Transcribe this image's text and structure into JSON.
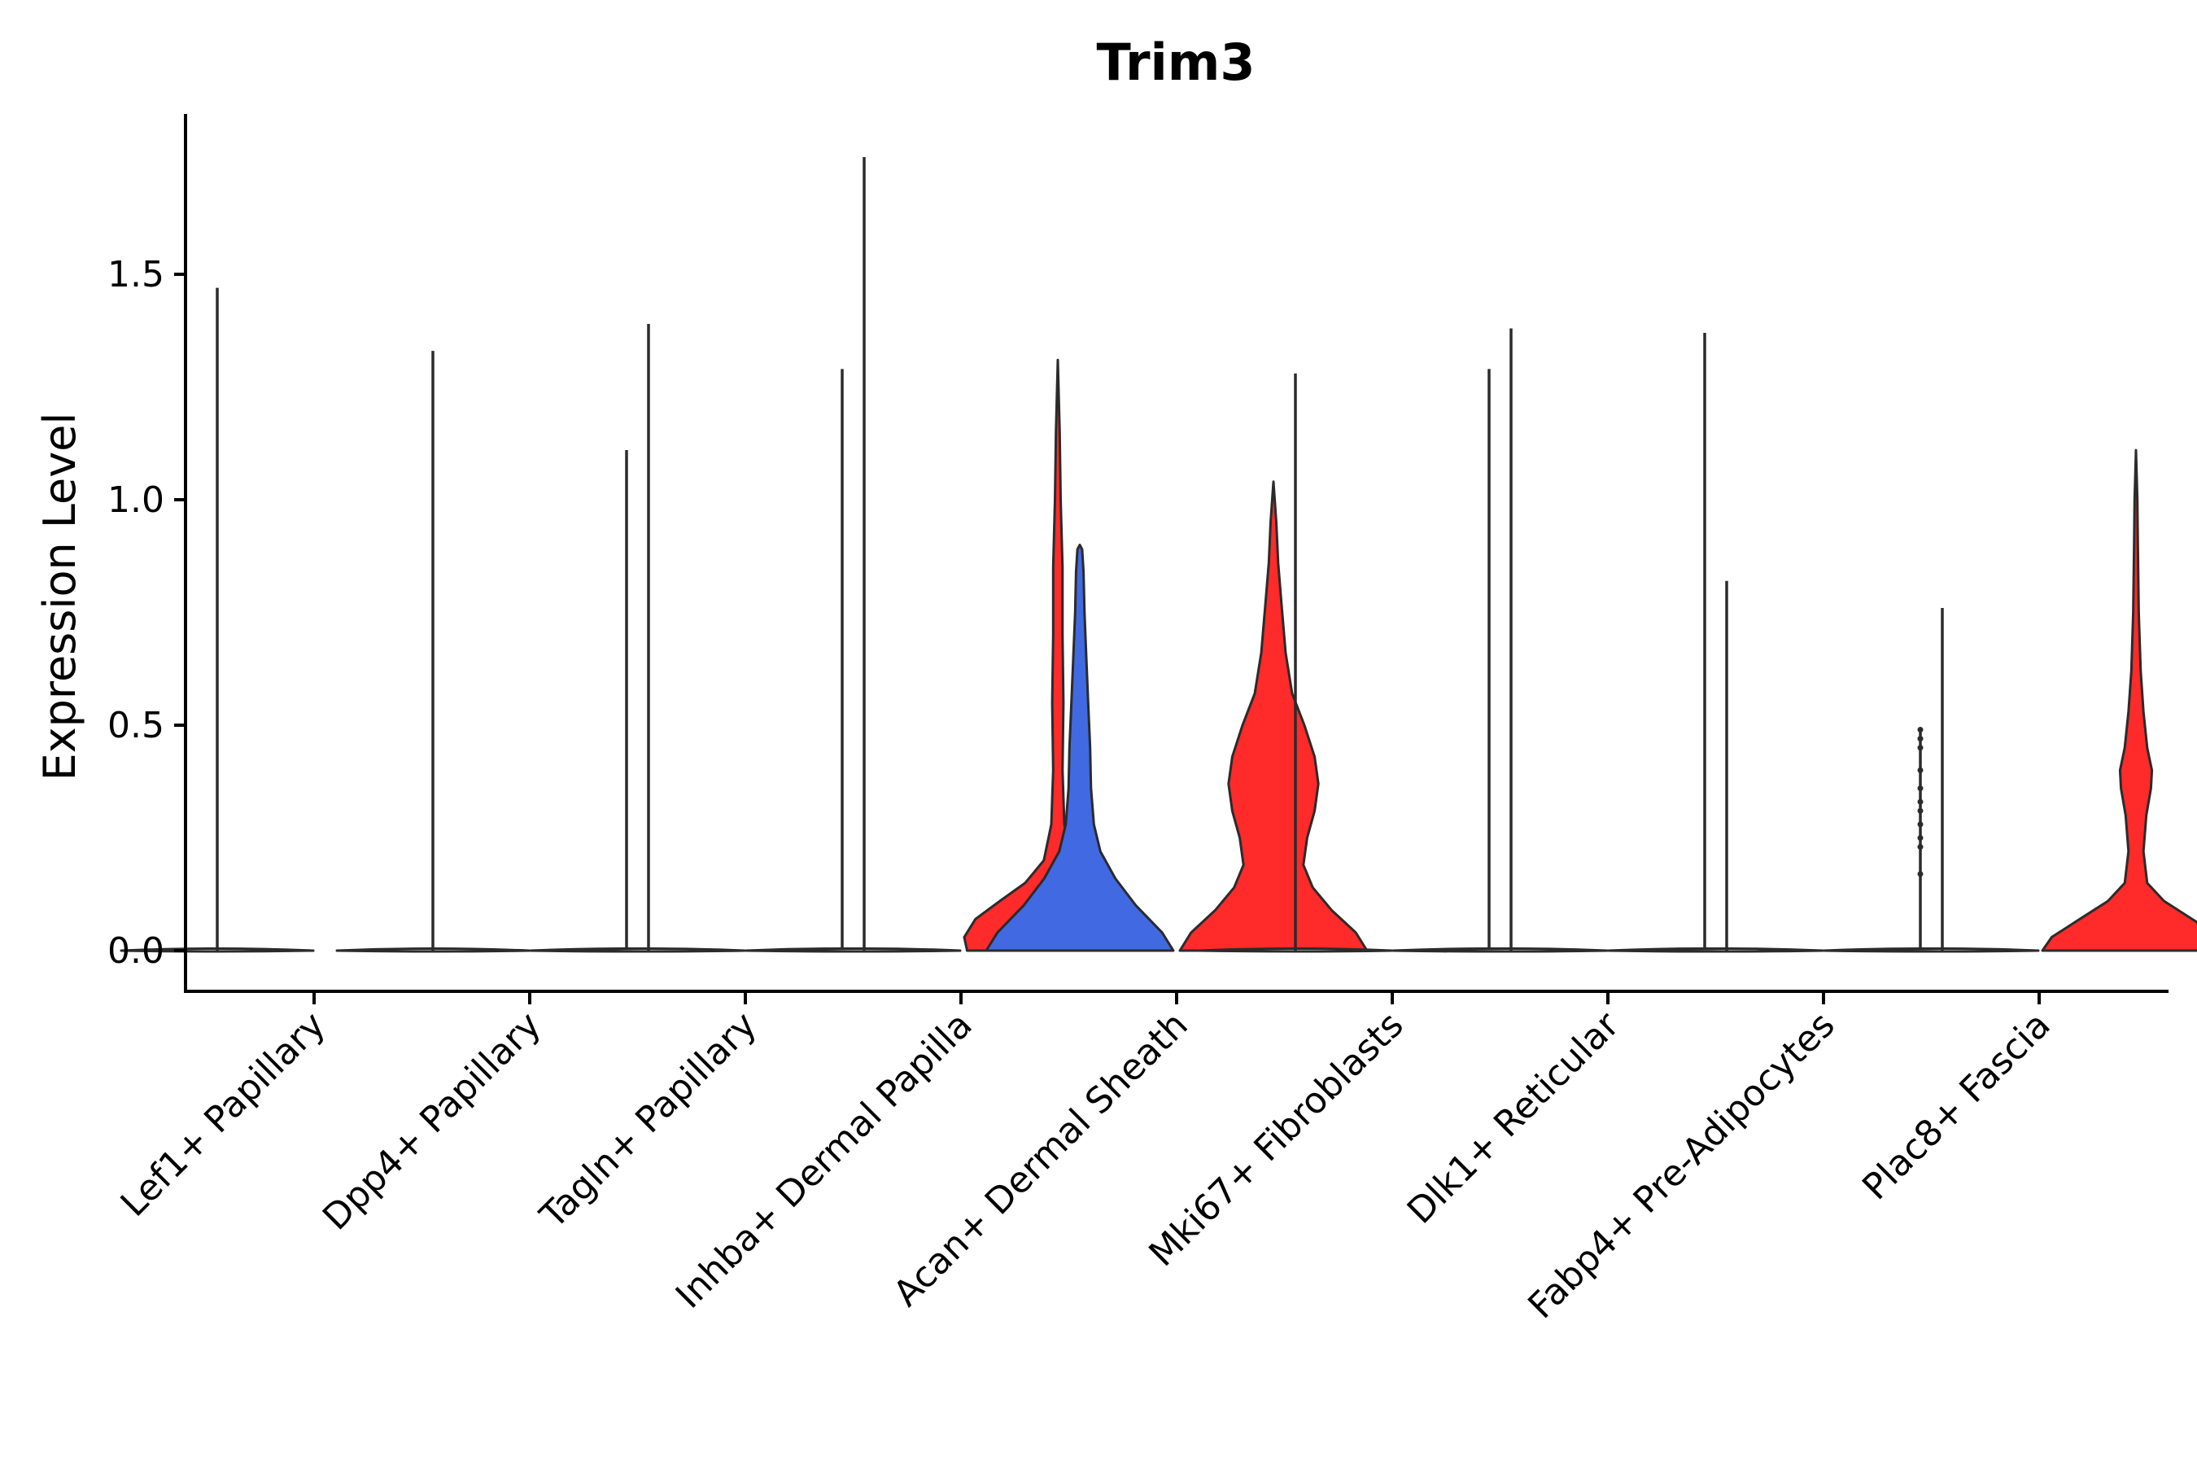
{
  "chart_data": {
    "type": "violin",
    "title": "Trim3",
    "xlabel": "",
    "ylabel": "Expression Level",
    "ylim": [
      -0.09,
      1.85
    ],
    "yticks": [
      0.0,
      0.5,
      1.0,
      1.5
    ],
    "ytick_labels": [
      "0.0",
      "0.5",
      "1.0",
      "1.5"
    ],
    "categories": [
      "Lef1+ Papillary",
      "Dpp4+ Papillary",
      "Tagln+ Papillary",
      "Inhba+ Dermal Papilla",
      "Acan+ Dermal Sheath",
      "Mki67+ Fibroblasts",
      "Dlk1+ Reticular",
      "Fabp4+ Pre-Adipocytes",
      "Plac8+ Fascia"
    ],
    "split_colors": {
      "low": "#ffffff",
      "mid": "#4169e1",
      "high": "#ff2a2a"
    },
    "violins": [
      {
        "category_index": 0,
        "side": "left",
        "max": 1.47,
        "profile": "zero",
        "fill": "#ffffff"
      },
      {
        "category_index": 1,
        "side": "left",
        "max": 1.33,
        "profile": "zero",
        "fill": "#ffffff"
      },
      {
        "category_index": 1,
        "side": "right",
        "max": 1.11,
        "profile": "zero",
        "fill": "#ffffff"
      },
      {
        "category_index": 2,
        "side": "left",
        "max": 1.39,
        "profile": "zero",
        "fill": "#ffffff"
      },
      {
        "category_index": 2,
        "side": "right",
        "max": 1.29,
        "profile": "zero",
        "fill": "#ffffff"
      },
      {
        "category_index": 3,
        "side": "left",
        "max": 1.76,
        "profile": "zero",
        "fill": "#ffffff"
      },
      {
        "category_index": 3,
        "side": "right",
        "max": 1.31,
        "profile": "inhba",
        "fill": "#ff2a2a"
      },
      {
        "category_index": 4,
        "side": "left",
        "max": 0.9,
        "profile": "acan_blue",
        "fill": "#4169e1"
      },
      {
        "category_index": 4,
        "side": "right",
        "max": 1.04,
        "profile": "acan_red",
        "fill": "#ff2a2a"
      },
      {
        "category_index": 5,
        "side": "left",
        "max": 1.28,
        "profile": "zero",
        "fill": "#ffffff"
      },
      {
        "category_index": 5,
        "side": "right",
        "max": 1.29,
        "profile": "zero",
        "fill": "#ffffff"
      },
      {
        "category_index": 6,
        "side": "left",
        "max": 1.38,
        "profile": "zero",
        "fill": "#ffffff"
      },
      {
        "category_index": 6,
        "side": "right",
        "max": 1.37,
        "profile": "zero",
        "fill": "#ffffff"
      },
      {
        "category_index": 7,
        "side": "left",
        "max": 0.82,
        "profile": "zero",
        "fill": "#ffffff"
      },
      {
        "category_index": 7,
        "side": "right",
        "max": 0.49,
        "profile": "zero",
        "fill": "#ffffff",
        "points": [
          0.49,
          0.47,
          0.45,
          0.4,
          0.36,
          0.33,
          0.31,
          0.28,
          0.25,
          0.23,
          0.17
        ]
      },
      {
        "category_index": 8,
        "side": "left",
        "max": 0.76,
        "profile": "zero",
        "fill": "#ffffff"
      },
      {
        "category_index": 8,
        "side": "right",
        "max": 1.11,
        "profile": "plac8",
        "fill": "#ff2a2a"
      }
    ],
    "grid": false,
    "legend": "none"
  }
}
